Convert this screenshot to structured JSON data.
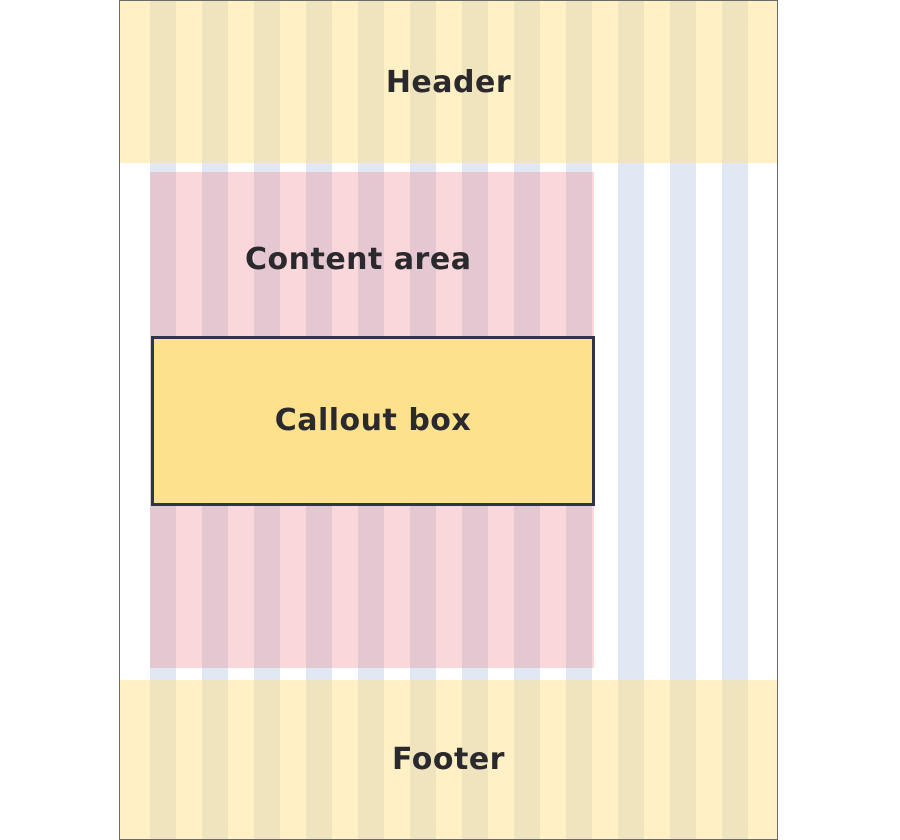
{
  "diagram": {
    "header_label": "Header",
    "content_label": "Content area",
    "callout_label": "Callout box",
    "footer_label": "Footer",
    "grid_columns": 12
  },
  "colors": {
    "header_footer_fill": "#fef3c9",
    "content_fill": "#f8d2d4",
    "column_fill": "#e0e6f2",
    "callout_fill": "#fde18d",
    "callout_border": "#2f3446",
    "frame_border": "#6a6a6a",
    "text": "#2a2a2e"
  }
}
